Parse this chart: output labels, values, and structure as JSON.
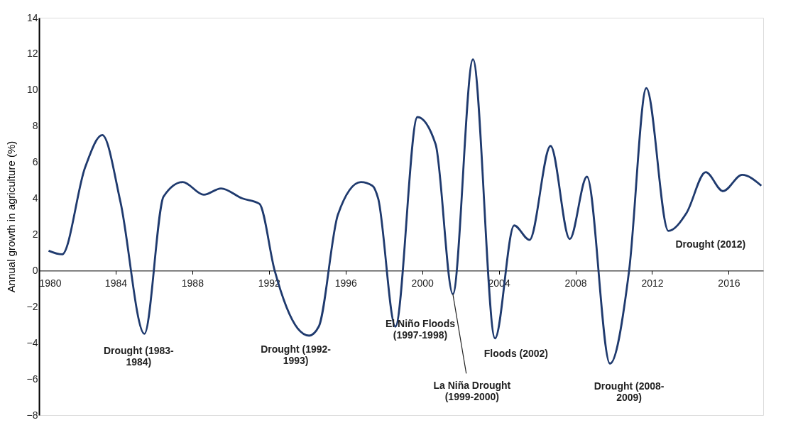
{
  "chart_data": {
    "type": "line",
    "ylabel": "Annual growth in agriculture (%)",
    "x": [
      1980.5,
      1981.2,
      1982.4,
      1983.3,
      1984.25,
      1985.5,
      1986.5,
      1987.5,
      1988.6,
      1989.5,
      1990.6,
      1991.5,
      1992.3,
      1993.5,
      1994.1,
      1994.6,
      1995.6,
      1996.8,
      1997.4,
      1997.7,
      1998.6,
      1999.75,
      2000.7,
      2001.6,
      2002.65,
      2003.8,
      2004.8,
      2005.6,
      2006.7,
      2007.7,
      2008.6,
      2009.8,
      2010.8,
      2011.7,
      2012.85,
      2013.8,
      2014.8,
      2015.7,
      2016.7,
      2017.7
    ],
    "series": [
      {
        "color": "#1f3a6e",
        "values": [
          1.1,
          0.9,
          5.7,
          7.5,
          3.8,
          -3.5,
          4.1,
          4.9,
          4.2,
          4.55,
          4.0,
          3.7,
          0,
          -3.2,
          -3.6,
          -3.1,
          3.1,
          4.9,
          4.7,
          4.0,
          -3.1,
          8.5,
          7.0,
          -1.3,
          11.7,
          -3.75,
          2.5,
          1.7,
          6.9,
          1.75,
          5.2,
          -5.15,
          0,
          10.1,
          2.2,
          3.2,
          5.45,
          4.4,
          5.3,
          4.7
        ]
      }
    ],
    "xlim": [
      1980,
      2017.8
    ],
    "xticks": [
      1980,
      1984,
      1988,
      1992,
      1996,
      2000,
      2004,
      2008,
      2012,
      2016
    ],
    "ylim": [
      -8,
      14
    ],
    "yticks": [
      -8,
      -6,
      -4,
      -2,
      0,
      2,
      4,
      6,
      8,
      10,
      12,
      14
    ],
    "grid": false,
    "marker": "none",
    "line_style": "solid",
    "annotations": [
      {
        "text": "Drought (1983-\n1984)",
        "x": 1985.5,
        "y": -3.5
      },
      {
        "text": "Drought (1992-\n1993)",
        "x": 1994.1,
        "y": -3.6
      },
      {
        "text": "El Niño Floods\n(1997-1998)",
        "x": 1998.6,
        "y": -3.1
      },
      {
        "text": "La Niña Drought\n(1999-2000)",
        "x": 2001.6,
        "y": -1.3
      },
      {
        "text": "Floods (2002)",
        "x": 2003.8,
        "y": -3.75
      },
      {
        "text": "Drought (2008-\n2009)",
        "x": 2009.8,
        "y": -5.15
      },
      {
        "text": "Drought (2012)",
        "x": 2012.85,
        "y": 2.2
      }
    ]
  }
}
